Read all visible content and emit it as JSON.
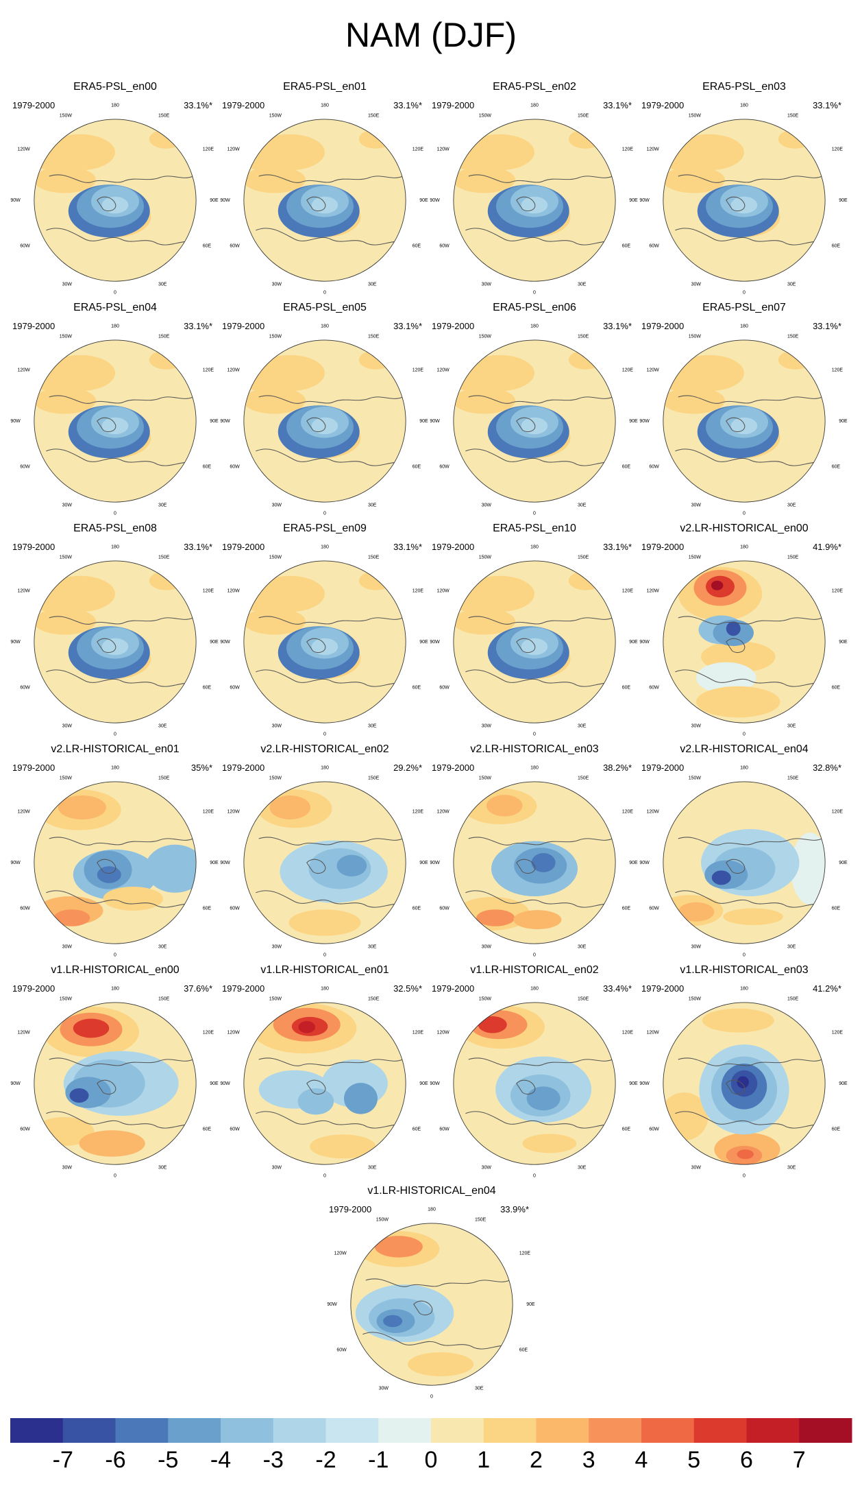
{
  "title": "NAM (DJF)",
  "period": "1979-2000",
  "longitude_labels": {
    "top": "180",
    "upper_left": "150W",
    "upper_right": "150E",
    "mid_left": "120W",
    "mid_right": "120E",
    "left": "90W",
    "right": "90E",
    "lower_left": "60W",
    "lower_right": "60E",
    "bottom_left": "30W",
    "bottom_right": "30E",
    "bottom": "0"
  },
  "panels": [
    {
      "name": "ERA5-PSL_en00",
      "percent": "33.1%*",
      "pattern": "era5"
    },
    {
      "name": "ERA5-PSL_en01",
      "percent": "33.1%*",
      "pattern": "era5"
    },
    {
      "name": "ERA5-PSL_en02",
      "percent": "33.1%*",
      "pattern": "era5"
    },
    {
      "name": "ERA5-PSL_en03",
      "percent": "33.1%*",
      "pattern": "era5"
    },
    {
      "name": "ERA5-PSL_en04",
      "percent": "33.1%*",
      "pattern": "era5"
    },
    {
      "name": "ERA5-PSL_en05",
      "percent": "33.1%*",
      "pattern": "era5"
    },
    {
      "name": "ERA5-PSL_en06",
      "percent": "33.1%*",
      "pattern": "era5"
    },
    {
      "name": "ERA5-PSL_en07",
      "percent": "33.1%*",
      "pattern": "era5"
    },
    {
      "name": "ERA5-PSL_en08",
      "percent": "33.1%*",
      "pattern": "era5"
    },
    {
      "name": "ERA5-PSL_en09",
      "percent": "33.1%*",
      "pattern": "era5"
    },
    {
      "name": "ERA5-PSL_en10",
      "percent": "33.1%*",
      "pattern": "era5"
    },
    {
      "name": "v2.LR-HISTORICAL_en00",
      "percent": "41.9%*",
      "pattern": "v2a"
    },
    {
      "name": "v2.LR-HISTORICAL_en01",
      "percent": "35%*",
      "pattern": "v2b"
    },
    {
      "name": "v2.LR-HISTORICAL_en02",
      "percent": "29.2%*",
      "pattern": "v2c"
    },
    {
      "name": "v2.LR-HISTORICAL_en03",
      "percent": "38.2%*",
      "pattern": "v2d"
    },
    {
      "name": "v2.LR-HISTORICAL_en04",
      "percent": "32.8%*",
      "pattern": "v2e"
    },
    {
      "name": "v1.LR-HISTORICAL_en00",
      "percent": "37.6%*",
      "pattern": "v1a"
    },
    {
      "name": "v1.LR-HISTORICAL_en01",
      "percent": "32.5%*",
      "pattern": "v1b"
    },
    {
      "name": "v1.LR-HISTORICAL_en02",
      "percent": "33.4%*",
      "pattern": "v1c"
    },
    {
      "name": "v1.LR-HISTORICAL_en03",
      "percent": "41.2%*",
      "pattern": "v1d"
    },
    {
      "name": "v1.LR-HISTORICAL_en04",
      "percent": "33.9%*",
      "pattern": "v1e"
    }
  ],
  "colorbar": {
    "labels": [
      "-7",
      "-6",
      "-5",
      "-4",
      "-3",
      "-2",
      "-1",
      "0",
      "1",
      "2",
      "3",
      "4",
      "5",
      "6",
      "7"
    ],
    "colors": [
      "#2b2f8e",
      "#3953a4",
      "#4a78b8",
      "#6aa0cc",
      "#8fc0de",
      "#aed6e8",
      "#c9e5ef",
      "#e3f1ef",
      "#f8e8b0",
      "#fbd584",
      "#fbb76a",
      "#f7935a",
      "#ef6a44",
      "#db3a2c",
      "#c41f27",
      "#a50f26"
    ]
  }
}
